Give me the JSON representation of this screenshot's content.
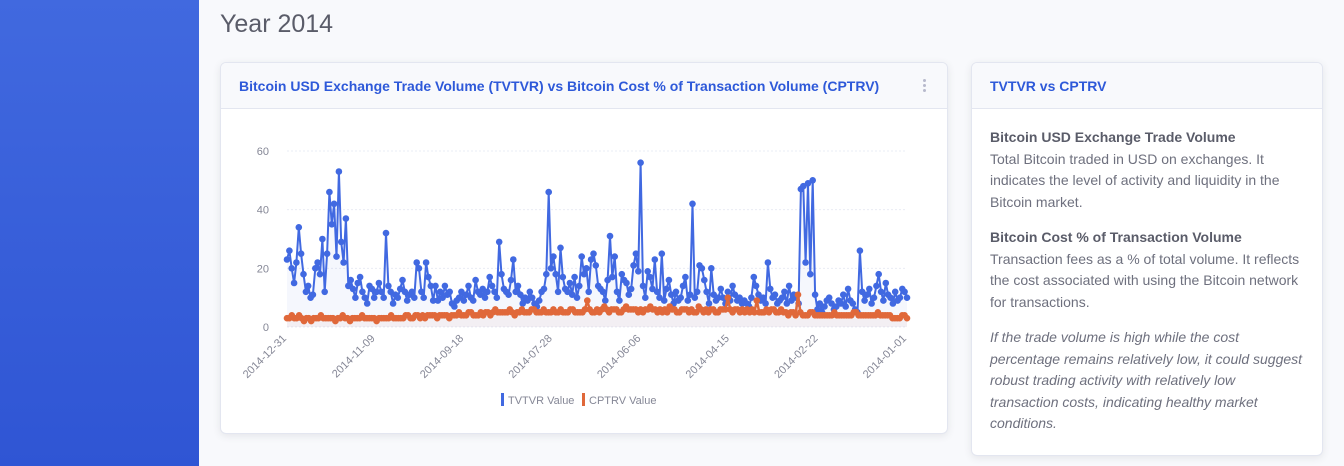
{
  "page": {
    "title": "Year 2014"
  },
  "chart_card": {
    "title": "Bitcoin USD Exchange Trade Volume (TVTVR) vs Bitcoin Cost % of Transaction Volume (CPTRV)"
  },
  "info_card": {
    "title": "TVTVR vs CPTRV",
    "sections": [
      {
        "heading": "Bitcoin USD Exchange Trade Volume",
        "text": "Total Bitcoin traded in USD on exchanges. It indicates the level of activity and liquidity in the Bitcoin market."
      },
      {
        "heading": "Bitcoin Cost % of Transaction Volume",
        "text": "Transaction fees as a % of total volume. It reflects the cost associated with using the Bitcoin network for transactions."
      }
    ],
    "note": "If the trade volume is high while the cost percentage remains relatively low, it could suggest robust trading activity with relatively low transaction costs, indicating healthy market conditions."
  },
  "colors": {
    "tvtvr": "#4169e1",
    "cptrv": "#e0683a",
    "accent": "#2e59d9"
  },
  "chart_data": {
    "type": "line",
    "title": "",
    "xlabel": "",
    "ylabel": "",
    "ylim": [
      0,
      60
    ],
    "y_ticks": [
      0,
      20,
      40,
      60
    ],
    "x_tick_labels": [
      "2014-12-31",
      "2014-11-09",
      "2014-09-18",
      "2014-07-28",
      "2014-06-06",
      "2014-04-15",
      "2014-02-22",
      "2014-01-01"
    ],
    "legend": {
      "placement": "bottom"
    },
    "grid": true,
    "series": [
      {
        "name": "TVTVR Value",
        "color": "#4169e1",
        "values": [
          23,
          26,
          20,
          15,
          22,
          34,
          25,
          18,
          12,
          14,
          10,
          11,
          20,
          22,
          18,
          30,
          12,
          25,
          46,
          35,
          42,
          24,
          53,
          29,
          22,
          37,
          14,
          16,
          13,
          10,
          15,
          17,
          12,
          10,
          8,
          14,
          13,
          10,
          12,
          15,
          12,
          10,
          32,
          14,
          12,
          8,
          11,
          10,
          13,
          16,
          12,
          9,
          11,
          12,
          10,
          22,
          20,
          12,
          10,
          22,
          17,
          14,
          9,
          14,
          9,
          12,
          10,
          14,
          11,
          12,
          8,
          7,
          9,
          10,
          12,
          9,
          11,
          14,
          10,
          9,
          16,
          12,
          11,
          13,
          10,
          12,
          17,
          14,
          12,
          10,
          29,
          18,
          13,
          12,
          11,
          16,
          23,
          12,
          14,
          11,
          8,
          10,
          9,
          12,
          10,
          8,
          7,
          9,
          12,
          13,
          18,
          46,
          20,
          24,
          18,
          12,
          27,
          17,
          13,
          12,
          15,
          11,
          17,
          10,
          14,
          24,
          18,
          20,
          12,
          23,
          25,
          21,
          14,
          13,
          12,
          9,
          16,
          31,
          17,
          24,
          12,
          9,
          18,
          16,
          15,
          11,
          13,
          21,
          25,
          19,
          56,
          14,
          10,
          19,
          17,
          13,
          23,
          12,
          10,
          25,
          9,
          13,
          16,
          11,
          8,
          12,
          9,
          10,
          14,
          17,
          9,
          11,
          42,
          10,
          12,
          21,
          20,
          16,
          12,
          8,
          20,
          11,
          9,
          10,
          13,
          10,
          8,
          12,
          9,
          14,
          11,
          9,
          10,
          8,
          9,
          8,
          7,
          10,
          17,
          14,
          11,
          9,
          10,
          8,
          22,
          13,
          10,
          11,
          8,
          9,
          10,
          12,
          8,
          14,
          9,
          11,
          10,
          8,
          47,
          48,
          22,
          49,
          18,
          50,
          11,
          6,
          8,
          5,
          7,
          9,
          10,
          8,
          6,
          7,
          9,
          8,
          11,
          7,
          13,
          9,
          8,
          6,
          5,
          26,
          12,
          9,
          11,
          13,
          8,
          10,
          14,
          18,
          12,
          9,
          15,
          11,
          10,
          8,
          12,
          9,
          10,
          13,
          12,
          10
        ]
      },
      {
        "name": "CPTRV Value",
        "color": "#e0683a",
        "values": [
          3,
          3,
          4,
          3,
          3,
          4,
          3,
          2,
          3,
          3,
          2,
          3,
          3,
          3,
          4,
          3,
          3,
          3,
          3,
          3,
          2,
          3,
          3,
          4,
          3,
          3,
          2,
          3,
          3,
          3,
          3,
          4,
          3,
          3,
          3,
          3,
          3,
          2,
          3,
          3,
          3,
          3,
          3,
          4,
          3,
          3,
          3,
          3,
          3,
          4,
          4,
          3,
          3,
          4,
          4,
          3,
          4,
          3,
          4,
          4,
          4,
          4,
          3,
          4,
          4,
          4,
          4,
          3,
          4,
          4,
          4,
          5,
          4,
          4,
          4,
          5,
          5,
          4,
          4,
          4,
          5,
          4,
          5,
          5,
          4,
          5,
          6,
          5,
          5,
          5,
          5,
          5,
          6,
          5,
          4,
          5,
          5,
          6,
          5,
          5,
          5,
          6,
          6,
          5,
          5,
          5,
          6,
          5,
          5,
          5,
          6,
          5,
          5,
          6,
          5,
          5,
          5,
          6,
          6,
          5,
          5,
          5,
          5,
          6,
          9,
          6,
          5,
          5,
          6,
          5,
          6,
          7,
          6,
          5,
          6,
          6,
          6,
          5,
          5,
          6,
          7,
          6,
          6,
          6,
          6,
          5,
          6,
          5,
          6,
          6,
          7,
          6,
          6,
          5,
          6,
          5,
          6,
          5,
          7,
          6,
          6,
          5,
          5,
          6,
          6,
          6,
          5,
          6,
          5,
          5,
          7,
          6,
          5,
          6,
          5,
          6,
          6,
          5,
          5,
          6,
          6,
          6,
          10,
          6,
          5,
          6,
          6,
          5,
          6,
          5,
          6,
          5,
          6,
          5,
          9,
          5,
          5,
          5,
          6,
          5,
          6,
          6,
          5,
          5,
          6,
          5,
          5,
          4,
          5,
          5,
          4,
          11,
          5,
          4,
          4,
          4,
          5,
          5,
          4,
          4,
          4,
          4,
          4,
          4,
          4,
          4,
          5,
          4,
          4,
          4,
          4,
          4,
          4,
          4,
          5,
          5,
          4,
          4,
          4,
          4,
          4,
          4,
          4,
          4,
          5,
          4,
          4,
          4,
          4,
          4,
          3,
          3,
          3,
          3,
          4,
          4,
          3
        ]
      }
    ]
  }
}
